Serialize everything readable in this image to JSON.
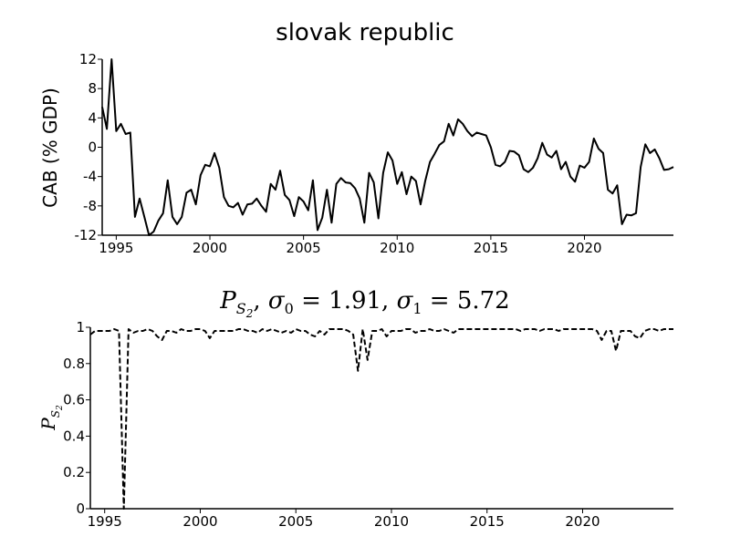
{
  "chart_data": [
    {
      "type": "line",
      "title": "slovak republic",
      "ylabel": "CAB (% GDP)",
      "xlabel": "",
      "xlim": [
        1994.25,
        2024.75
      ],
      "ylim": [
        -12,
        12
      ],
      "xticks": [
        "1995",
        "2000",
        "2005",
        "2010",
        "2015",
        "2020"
      ],
      "yticks": [
        "12",
        "8",
        "4",
        "0",
        "-4",
        "-8",
        "-12"
      ],
      "grid": false,
      "line_style": "solid",
      "color": "#000000",
      "series": [
        {
          "x": [
            1994.25,
            1994.5,
            1994.75,
            1995.0,
            1995.25,
            1995.5,
            1995.75,
            1996.0,
            1996.25,
            1996.5,
            1996.75,
            1997.0,
            1997.25,
            1997.5,
            1997.75,
            1998.0,
            1998.25,
            1998.5,
            1998.75,
            1999.0,
            1999.25,
            1999.5,
            1999.75,
            2000.0,
            2000.25,
            2000.5,
            2000.75,
            2001.0,
            2001.25,
            2001.5,
            2001.75,
            2002.0,
            2002.25,
            2002.5,
            2002.75,
            2003.0,
            2003.25,
            2003.5,
            2003.75,
            2004.0,
            2004.25,
            2004.5,
            2004.75,
            2005.0,
            2005.25,
            2005.5,
            2005.75,
            2006.0,
            2006.25,
            2006.5,
            2006.75,
            2007.0,
            2007.25,
            2007.5,
            2007.75,
            2008.0,
            2008.25,
            2008.5,
            2008.75,
            2009.0,
            2009.25,
            2009.5,
            2009.75,
            2010.0,
            2010.25,
            2010.5,
            2010.75,
            2011.0,
            2011.25,
            2011.5,
            2011.75,
            2012.0,
            2012.25,
            2012.5,
            2012.75,
            2013.0,
            2013.25,
            2013.5,
            2013.75,
            2014.0,
            2014.25,
            2014.5,
            2014.75,
            2015.0,
            2015.25,
            2015.5,
            2015.75,
            2016.0,
            2016.25,
            2016.5,
            2016.75,
            2017.0,
            2017.25,
            2017.5,
            2017.75,
            2018.0,
            2018.25,
            2018.5,
            2018.75,
            2019.0,
            2019.25,
            2019.5,
            2019.75,
            2020.0,
            2020.25,
            2020.5,
            2020.75,
            2021.0,
            2021.25,
            2021.5,
            2021.75,
            2022.0,
            2022.25,
            2022.5,
            2022.75,
            2023.0,
            2023.25,
            2023.5,
            2023.75,
            2024.0,
            2024.25,
            2024.5,
            2024.75
          ],
          "y": [
            5.5,
            2.5,
            12.0,
            2.2,
            3.2,
            1.8,
            2.0,
            -9.5,
            -7.0,
            -9.5,
            -12.0,
            -11.5,
            -10.0,
            -9.0,
            -4.5,
            -9.5,
            -10.5,
            -9.5,
            -6.2,
            -5.8,
            -7.8,
            -3.8,
            -2.4,
            -2.6,
            -0.8,
            -2.8,
            -6.8,
            -8.0,
            -8.2,
            -7.6,
            -9.2,
            -7.8,
            -7.7,
            -7.0,
            -8.0,
            -8.8,
            -5.0,
            -5.8,
            -3.2,
            -6.5,
            -7.2,
            -9.4,
            -6.8,
            -7.4,
            -8.6,
            -4.5,
            -11.3,
            -9.6,
            -5.8,
            -10.3,
            -5.0,
            -4.2,
            -4.8,
            -4.9,
            -5.6,
            -7.0,
            -10.3,
            -3.5,
            -4.8,
            -9.7,
            -3.5,
            -0.7,
            -1.8,
            -5.0,
            -3.4,
            -6.4,
            -4.0,
            -4.6,
            -7.8,
            -4.6,
            -2.0,
            -0.9,
            0.3,
            0.8,
            3.2,
            1.6,
            3.8,
            3.2,
            2.2,
            1.5,
            2.0,
            1.8,
            1.6,
            0.0,
            -2.4,
            -2.6,
            -2.0,
            -0.5,
            -0.6,
            -1.1,
            -3.0,
            -3.4,
            -2.8,
            -1.5,
            0.6,
            -1.0,
            -1.4,
            -0.5,
            -3.0,
            -2.0,
            -4.0,
            -4.7,
            -2.5,
            -2.8,
            -2.0,
            1.2,
            -0.2,
            -0.8,
            -5.8,
            -6.3,
            -5.2,
            -10.5,
            -9.2,
            -9.3,
            -9.0,
            -2.7,
            0.4,
            -0.8,
            -0.3,
            -1.5,
            -3.1,
            -3.0,
            -2.7
          ]
        }
      ]
    },
    {
      "type": "line",
      "title": "P_{S_2}, σ0 = 1.91, σ1 = 5.72",
      "ylabel": "P_{S_2}",
      "xlabel": "",
      "xlim": [
        1994.25,
        2024.75
      ],
      "ylim": [
        0,
        1
      ],
      "xticks": [
        "1995",
        "2000",
        "2005",
        "2010",
        "2015",
        "2020"
      ],
      "yticks": [
        "1",
        "0.8",
        "0.6",
        "0.4",
        "0.2",
        "0"
      ],
      "grid": false,
      "line_style": "dashed",
      "color": "#000000",
      "series": [
        {
          "x": [
            1994.25,
            1994.5,
            1994.75,
            1995.0,
            1995.25,
            1995.5,
            1995.75,
            1996.0,
            1996.25,
            1996.5,
            1996.75,
            1997.0,
            1997.25,
            1997.5,
            1997.75,
            1998.0,
            1998.25,
            1998.5,
            1998.75,
            1999.0,
            1999.25,
            1999.5,
            1999.75,
            2000.0,
            2000.25,
            2000.5,
            2000.75,
            2001.0,
            2001.25,
            2001.5,
            2001.75,
            2002.0,
            2002.25,
            2002.5,
            2002.75,
            2003.0,
            2003.25,
            2003.5,
            2003.75,
            2004.0,
            2004.25,
            2004.5,
            2004.75,
            2005.0,
            2005.25,
            2005.5,
            2005.75,
            2006.0,
            2006.25,
            2006.5,
            2006.75,
            2007.0,
            2007.25,
            2007.5,
            2007.75,
            2008.0,
            2008.25,
            2008.5,
            2008.75,
            2009.0,
            2009.25,
            2009.5,
            2009.75,
            2010.0,
            2010.25,
            2010.5,
            2010.75,
            2011.0,
            2011.25,
            2011.5,
            2011.75,
            2012.0,
            2012.25,
            2012.5,
            2012.75,
            2013.0,
            2013.25,
            2013.5,
            2013.75,
            2014.0,
            2014.25,
            2014.5,
            2014.75,
            2015.0,
            2015.25,
            2015.5,
            2015.75,
            2016.0,
            2016.25,
            2016.5,
            2016.75,
            2017.0,
            2017.25,
            2017.5,
            2017.75,
            2018.0,
            2018.25,
            2018.5,
            2018.75,
            2019.0,
            2019.25,
            2019.5,
            2019.75,
            2020.0,
            2020.25,
            2020.5,
            2020.75,
            2021.0,
            2021.25,
            2021.5,
            2021.75,
            2022.0,
            2022.25,
            2022.5,
            2022.75,
            2023.0,
            2023.25,
            2023.5,
            2023.75,
            2024.0,
            2024.25,
            2024.5,
            2024.75
          ],
          "y": [
            0.96,
            0.98,
            0.98,
            0.98,
            0.98,
            0.99,
            0.98,
            0.0,
            0.99,
            0.97,
            0.98,
            0.98,
            0.99,
            0.98,
            0.95,
            0.93,
            0.98,
            0.98,
            0.97,
            0.99,
            0.98,
            0.98,
            0.99,
            0.99,
            0.98,
            0.94,
            0.98,
            0.98,
            0.98,
            0.98,
            0.98,
            0.99,
            0.99,
            0.98,
            0.98,
            0.97,
            0.99,
            0.98,
            0.99,
            0.98,
            0.97,
            0.98,
            0.97,
            0.99,
            0.98,
            0.98,
            0.96,
            0.95,
            0.98,
            0.96,
            0.99,
            0.99,
            0.99,
            0.99,
            0.98,
            0.96,
            0.76,
            0.99,
            0.82,
            0.98,
            0.98,
            0.99,
            0.95,
            0.98,
            0.98,
            0.98,
            0.99,
            0.99,
            0.97,
            0.98,
            0.98,
            0.99,
            0.98,
            0.98,
            0.99,
            0.98,
            0.97,
            0.99,
            0.99,
            0.99,
            0.99,
            0.99,
            0.99,
            0.99,
            0.99,
            0.99,
            0.99,
            0.99,
            0.99,
            0.99,
            0.98,
            0.99,
            0.99,
            0.99,
            0.98,
            0.99,
            0.99,
            0.99,
            0.98,
            0.99,
            0.99,
            0.99,
            0.99,
            0.99,
            0.99,
            0.99,
            0.98,
            0.93,
            0.98,
            0.98,
            0.87,
            0.98,
            0.98,
            0.98,
            0.95,
            0.94,
            0.98,
            0.99,
            0.99,
            0.98,
            0.99,
            0.99,
            0.99
          ]
        }
      ]
    }
  ]
}
